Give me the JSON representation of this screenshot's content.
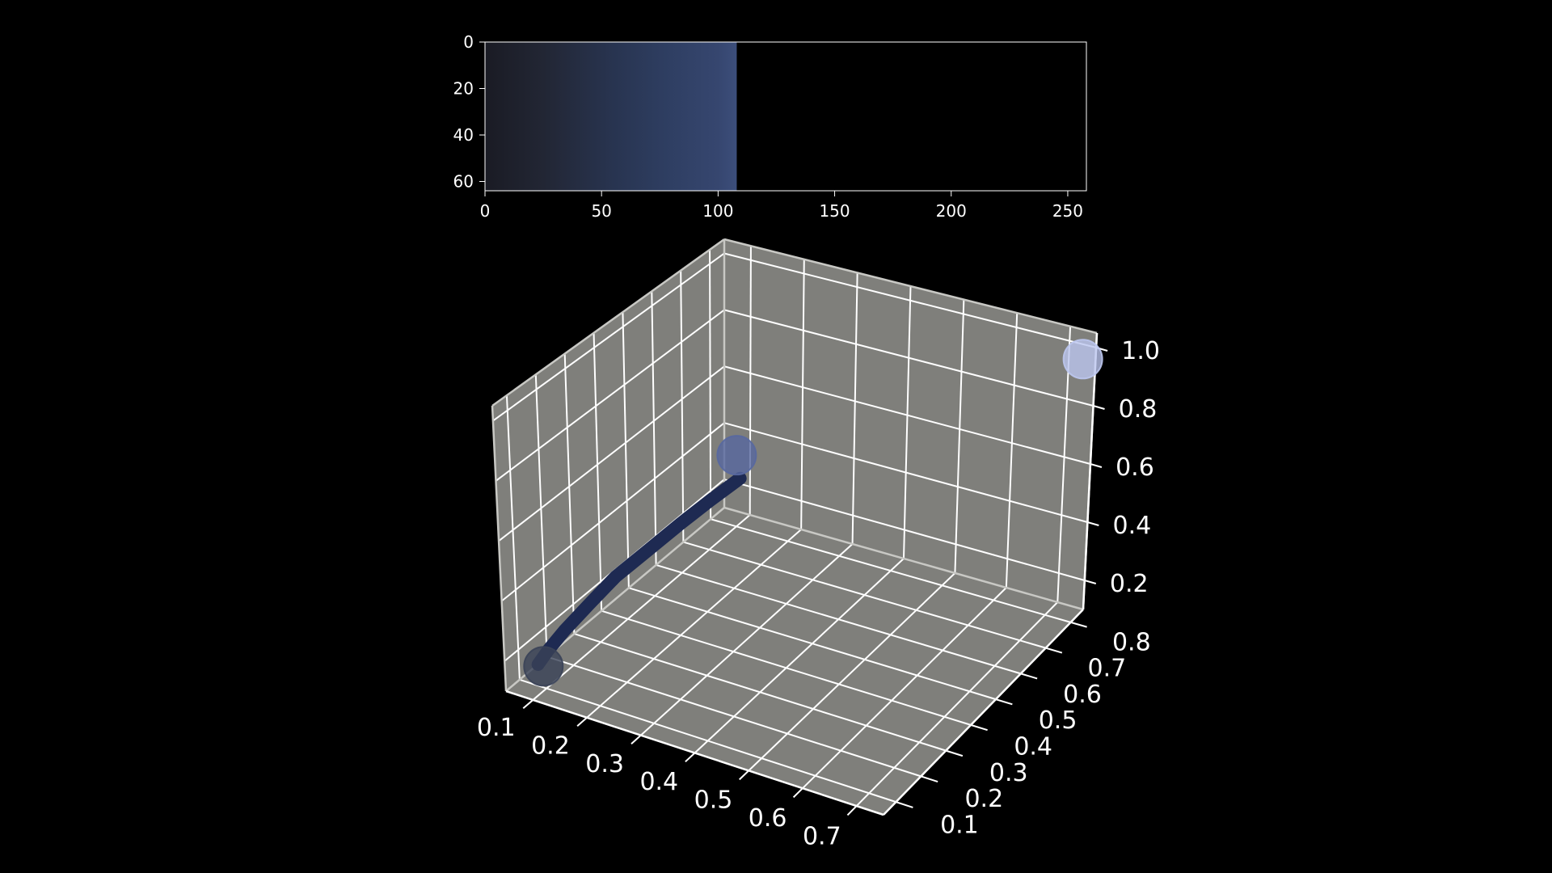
{
  "colors": {
    "background": "#000000",
    "panel": "#7f7f7b",
    "grid": "#ffffff",
    "strip_fill": "#3b4d79",
    "end_marker": "#bcc6ef",
    "mid_marker": "#5868a0",
    "start_marker": "#3a4258",
    "trajectory": "#1e2a52"
  },
  "chart_data": [
    {
      "type": "heatmap",
      "title": "",
      "xlabel": "",
      "ylabel": "",
      "xlim": [
        0,
        258
      ],
      "ylim": [
        64,
        0
      ],
      "x_ticks": [
        "0",
        "50",
        "100",
        "150",
        "200",
        "250"
      ],
      "y_ticks": [
        "0",
        "20",
        "40",
        "60"
      ],
      "filled_columns": [
        0,
        108
      ],
      "column_colors": [
        {
          "x": 0,
          "color": "#1a1b24"
        },
        {
          "x": 25,
          "color": "#222634"
        },
        {
          "x": 55,
          "color": "#283450"
        },
        {
          "x": 80,
          "color": "#2f3f63"
        },
        {
          "x": 100,
          "color": "#36466f"
        },
        {
          "x": 108,
          "color": "#3c4e7b"
        }
      ]
    },
    {
      "type": "scatter",
      "projection": "3d",
      "title": "",
      "xlabel": "",
      "ylabel": "",
      "zlabel": "",
      "xlim": [
        0.05,
        0.75
      ],
      "ylim": [
        0.05,
        0.85
      ],
      "zlim": [
        0.1,
        1.05
      ],
      "x_ticks": [
        "0.1",
        "0.2",
        "0.3",
        "0.4",
        "0.5",
        "0.6",
        "0.7"
      ],
      "y_ticks": [
        "0.1",
        "0.2",
        "0.3",
        "0.4",
        "0.5",
        "0.6",
        "0.7",
        "0.8"
      ],
      "z_ticks": [
        "0.2",
        "0.4",
        "0.6",
        "0.8",
        "1.0"
      ],
      "trajectory": {
        "x": [
          0.07,
          0.075,
          0.08,
          0.09,
          0.1,
          0.115,
          0.13,
          0.145,
          0.16
        ],
        "y": [
          0.13,
          0.16,
          0.21,
          0.28,
          0.36,
          0.45,
          0.54,
          0.62,
          0.7
        ],
        "z": [
          0.14,
          0.17,
          0.2,
          0.24,
          0.28,
          0.31,
          0.34,
          0.365,
          0.385
        ]
      },
      "markers": [
        {
          "x": 0.08,
          "y": 0.13,
          "z": 0.14
        },
        {
          "x": 0.09,
          "y": 0.82,
          "z": 0.33
        },
        {
          "x": 0.74,
          "y": 0.82,
          "z": 1.0
        }
      ]
    }
  ]
}
